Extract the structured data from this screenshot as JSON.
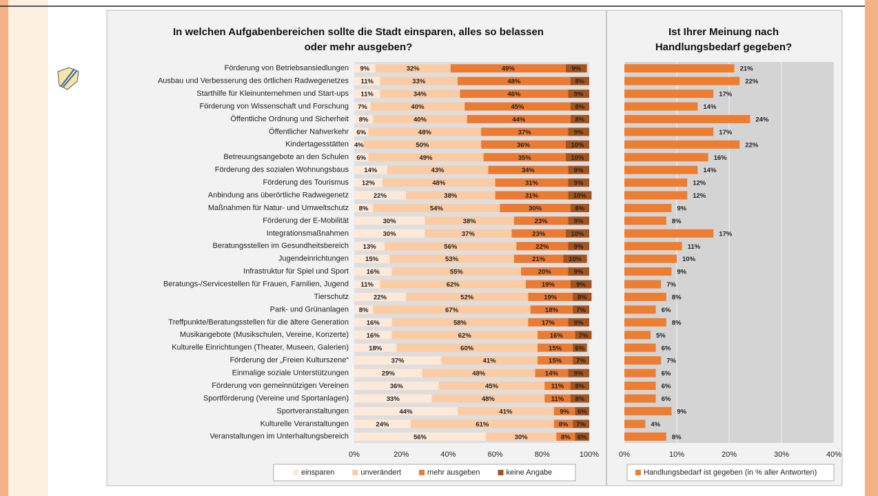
{
  "chart_data": [
    {
      "type": "stacked_bar_h",
      "title": "In welchen Aufgabenbereichen sollte die Stadt einsparen, alles so belassen oder mehr ausgeben?",
      "categories": [
        "Förderung von Betriebsansiedlungen",
        "Ausbau und Verbesserung des örtlichen Radwegenetzes",
        "Starthilfe für Kleinunternehmen und Start-ups",
        "Förderung von Wissenschaft und Forschung",
        "Öffentliche Ordnung und Sicherheit",
        "Öffentlicher Nahverkehr",
        "Kindertagesstätten",
        "Betreuungsangebote an den Schulen",
        "Förderung des sozialen Wohnungsbaus",
        "Förderung des Tourismus",
        "Anbindung ans überörtliche Radwegenetz",
        "Maßnahmen für Natur- und Umweltschutz",
        "Förderung der E-Mobilität",
        "Integrationsmaßnahmen",
        "Beratungsstellen im Gesundheitsbereich",
        "Jugendeinrichtungen",
        "Infrastruktur für Spiel und Sport",
        "Beratungs-/Servicestellen für Frauen, Familien, Jugend",
        "Tierschutz",
        "Park- und Grünanlagen",
        "Treffpunkte/Beratungsstellen für die ältere Generation",
        "Musikangebote (Musikschulen, Vereine, Konzerte)",
        "Kulturelle Einrichtungen (Theater, Museen, Galerien)",
        "Förderung der „Freien Kulturszene“",
        "Einmalige soziale Unterstützungen",
        "Förderung von gemeinnützigen Vereinen",
        "Sportförderung (Vereine und Sportanlagen)",
        "Sportveranstaltungen",
        "Kulturelle Veranstaltungen",
        "Veranstaltungen im Unterhaltungsbereich"
      ],
      "series": [
        {
          "name": "einsparen",
          "color": "#fde9d9",
          "values": [
            9,
            11,
            11,
            7,
            8,
            6,
            4,
            6,
            14,
            12,
            22,
            8,
            30,
            30,
            13,
            15,
            16,
            11,
            22,
            8,
            16,
            16,
            18,
            37,
            29,
            36,
            33,
            44,
            24,
            56
          ],
          "value_labels": [
            "9%",
            "11%",
            "11%",
            "7%",
            "8%",
            "6%",
            "4%",
            "6%",
            "14%",
            "12%",
            "22%",
            "8%",
            "30%",
            "30%",
            "13%",
            "15%",
            "16%",
            "11%",
            "22%",
            "8%",
            "16%",
            "16%",
            "18%",
            "37%",
            "29%",
            "36%",
            "33%",
            "44%",
            "24%",
            "56%"
          ]
        },
        {
          "name": "unverändert",
          "color": "#fbcca4",
          "values": [
            32,
            33,
            34,
            40,
            40,
            48,
            50,
            49,
            43,
            48,
            38,
            54,
            38,
            37,
            56,
            53,
            55,
            62,
            52,
            67,
            58,
            62,
            60,
            41,
            48,
            45,
            48,
            41,
            61,
            30
          ],
          "value_labels": [
            "32%",
            "33%",
            "34%",
            "40%",
            "40%",
            "48%",
            "50%",
            "49%",
            "43%",
            "48%",
            "38%",
            "54%",
            "38%",
            "37%",
            "56%",
            "53%",
            "55%",
            "62%",
            "52%",
            "67%",
            "58%",
            "62%",
            "60%",
            "41%",
            "48%",
            "45%",
            "48%",
            "41%",
            "61%",
            "30%"
          ]
        },
        {
          "name": "mehr ausgeben",
          "color": "#eb7a32",
          "values": [
            49,
            48,
            46,
            45,
            44,
            37,
            36,
            35,
            34,
            31,
            31,
            30,
            23,
            23,
            22,
            21,
            20,
            19,
            19,
            18,
            17,
            16,
            15,
            15,
            14,
            11,
            11,
            9,
            8,
            8
          ],
          "value_labels": [
            "49%",
            "48%",
            "46%",
            "45%",
            "44%",
            "37%",
            "36%",
            "35%",
            "34%",
            "31%",
            "31%",
            "30%",
            "23%",
            "23%",
            "22%",
            "21%",
            "20%",
            "19%",
            "19%",
            "18%",
            "17%",
            "16%",
            "15%",
            "15%",
            "14%",
            "11%",
            "11%",
            "9%",
            "8%",
            "8%"
          ]
        },
        {
          "name": "keine Angabe",
          "color": "#a5531d",
          "values": [
            9,
            8,
            9,
            8,
            8,
            9,
            10,
            10,
            9,
            9,
            10,
            8,
            9,
            10,
            9,
            10,
            9,
            9,
            8,
            7,
            9,
            7,
            6,
            7,
            9,
            8,
            8,
            6,
            7,
            6
          ],
          "value_labels": [
            "9%",
            "8%",
            "9%",
            "8%",
            "8%",
            "9%",
            "10%",
            "10%",
            "9%",
            "9%",
            "10%",
            "8%",
            "9%",
            "10%",
            "9%",
            "10%",
            "9%",
            "9%",
            "8%",
            "7%",
            "9%",
            "7%",
            "6%",
            "7%",
            "9%",
            "8%",
            "8%",
            "6%",
            "7%",
            "6%"
          ]
        }
      ],
      "xlim": [
        0,
        100
      ],
      "xticks": [
        {
          "value": 0,
          "label": "0%"
        },
        {
          "value": 20,
          "label": "20%"
        },
        {
          "value": 40,
          "label": "40%"
        },
        {
          "value": 60,
          "label": "60%"
        },
        {
          "value": 80,
          "label": "80%"
        },
        {
          "value": 100,
          "label": "100%"
        }
      ],
      "grid": false,
      "legend": "bottom"
    },
    {
      "type": "bar_h",
      "title": "Ist Ihrer Meinung nach Handlungsbedarf gegeben?",
      "series": [
        {
          "name": "Handlungsbedarf ist gegeben (in % aller Antworten)",
          "color": "#ed7d31",
          "values": [
            21,
            22,
            17,
            14,
            24,
            17,
            22,
            16,
            14,
            12,
            12,
            9,
            8,
            17,
            11,
            10,
            9,
            7,
            8,
            6,
            8,
            5,
            6,
            7,
            6,
            6,
            6,
            9,
            4,
            8
          ],
          "value_labels": [
            "21%",
            "22%",
            "17%",
            "14%",
            "24%",
            "17%",
            "22%",
            "16%",
            "14%",
            "12%",
            "12%",
            "9%",
            "8%",
            "17%",
            "11%",
            "10%",
            "9%",
            "7%",
            "8%",
            "6%",
            "8%",
            "5%",
            "6%",
            "7%",
            "6%",
            "6%",
            "6%",
            "9%",
            "4%",
            "8%"
          ]
        }
      ],
      "xlim": [
        0,
        40
      ],
      "xticks": [
        {
          "value": 0,
          "label": "0%"
        },
        {
          "value": 10,
          "label": "10%"
        },
        {
          "value": 20,
          "label": "20%"
        },
        {
          "value": 30,
          "label": "30%"
        },
        {
          "value": 40,
          "label": "40%"
        }
      ],
      "grid": true,
      "legend": "bottom"
    }
  ]
}
